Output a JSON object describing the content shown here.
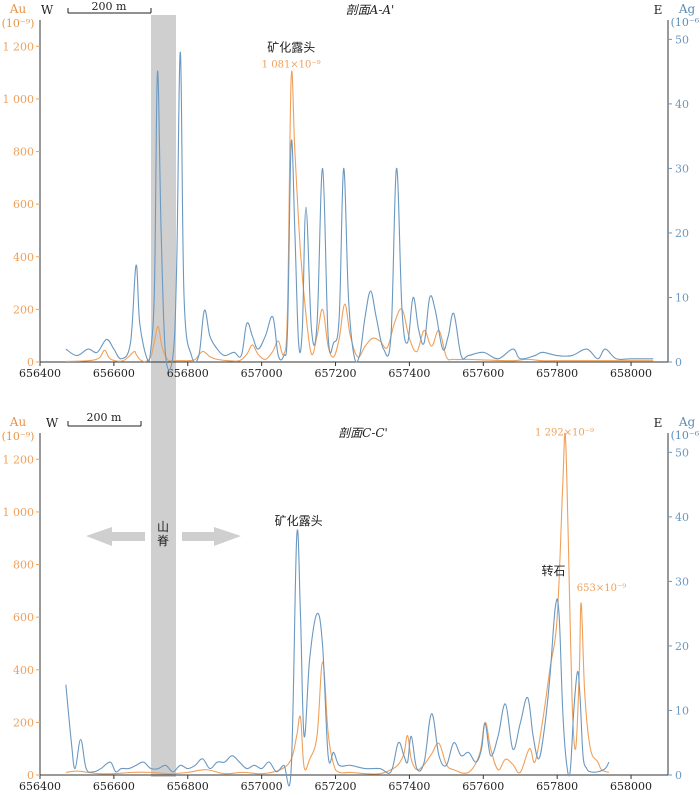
{
  "colors": {
    "au": "#F0A05A",
    "ag": "#6A98C0",
    "ridge": "#CFCFCF",
    "axis": "#333333"
  },
  "left_axis_label": "Au",
  "left_axis_unit": "(10⁻⁹)",
  "right_axis_label": "Ag",
  "right_axis_unit": "(10⁻⁶)",
  "west_label": "W",
  "east_label": "E",
  "scale_bar_label": "200 m",
  "ridge_label_1": "山",
  "ridge_label_2": "脊",
  "chart_data": [
    {
      "type": "line",
      "title": "剖面A-A'",
      "xlim": [
        656400,
        658100
      ],
      "x_ticks": [
        "656400",
        "656600",
        "656800",
        "657000",
        "657200",
        "657400",
        "657600",
        "657800",
        "658000"
      ],
      "y_left_lim": [
        0,
        1300
      ],
      "y_left_ticks": [
        "0",
        "200",
        "400",
        "600",
        "800",
        "1 000",
        "1 200"
      ],
      "y_right_lim": [
        0,
        53
      ],
      "y_right_ticks": [
        "0",
        "10",
        "20",
        "30",
        "40",
        "50"
      ],
      "annotations": [
        {
          "text": "矿化露头",
          "x": 657080,
          "y": 1180,
          "color": "black"
        },
        {
          "text": "1 081×10⁻⁹",
          "x": 657080,
          "y": 1120,
          "color": "au"
        }
      ],
      "series": [
        {
          "name": "Au",
          "axis": "left",
          "color": "au",
          "x": [
            656470,
            656530,
            656560,
            656575,
            656590,
            656620,
            656640,
            656655,
            656660,
            656670,
            656685,
            656700,
            656710,
            656720,
            656730,
            656745,
            656760,
            656780,
            656800,
            656820,
            656840,
            656860,
            656880,
            656910,
            656940,
            656960,
            656975,
            656990,
            657010,
            657030,
            657045,
            657060,
            657070,
            657080,
            657090,
            657105,
            657120,
            657135,
            657150,
            657165,
            657180,
            657195,
            657210,
            657225,
            657240,
            657260,
            657280,
            657300,
            657320,
            657340,
            657360,
            657380,
            657400,
            657420,
            657440,
            657460,
            657480,
            657500,
            657520,
            657560,
            657600,
            657640,
            657680,
            657720,
            657760,
            657800,
            657840,
            657880,
            657920,
            657960,
            658000,
            658060
          ],
          "y": [
            2,
            5,
            15,
            45,
            12,
            3,
            20,
            40,
            30,
            10,
            2,
            20,
            80,
            135,
            60,
            10,
            5,
            5,
            5,
            10,
            40,
            20,
            10,
            5,
            5,
            30,
            65,
            30,
            10,
            40,
            80,
            30,
            200,
            1081,
            800,
            420,
            180,
            30,
            100,
            200,
            60,
            20,
            90,
            220,
            100,
            20,
            60,
            90,
            80,
            55,
            150,
            200,
            90,
            40,
            120,
            60,
            120,
            20,
            10,
            10,
            8,
            6,
            5,
            10,
            5,
            5,
            5,
            5,
            5,
            5,
            5,
            5
          ]
        },
        {
          "name": "Ag",
          "axis": "right",
          "color": "ag",
          "x": [
            656470,
            656500,
            656530,
            656555,
            656580,
            656600,
            656620,
            656645,
            656660,
            656670,
            656690,
            656700,
            656710,
            656718,
            656728,
            656740,
            656760,
            656770,
            656780,
            656790,
            656810,
            656830,
            656845,
            656860,
            656880,
            656900,
            656925,
            656945,
            656960,
            656975,
            656990,
            657010,
            657030,
            657045,
            657060,
            657070,
            657080,
            657090,
            657100,
            657110,
            657120,
            657135,
            657150,
            657165,
            657180,
            657195,
            657210,
            657222,
            657235,
            657250,
            657265,
            657280,
            657295,
            657310,
            657330,
            657350,
            657365,
            657380,
            657395,
            657410,
            657425,
            657440,
            657455,
            657470,
            657490,
            657505,
            657520,
            657540,
            657560,
            657600,
            657640,
            657680,
            657700,
            657740,
            657760,
            657800,
            657840,
            657880,
            657910,
            657930,
            657960,
            658000,
            658060
          ],
          "y": [
            2,
            1,
            2,
            1.5,
            3.5,
            2,
            0.5,
            3,
            15,
            6,
            0.5,
            2,
            12,
            45,
            20,
            1,
            1,
            15,
            48,
            10,
            1,
            1,
            8,
            4,
            2,
            1,
            1.5,
            1,
            6,
            4,
            2,
            4,
            7,
            1,
            1,
            5,
            34,
            20,
            3,
            5,
            24,
            5,
            6,
            30,
            4,
            3,
            7,
            30,
            10,
            1,
            1,
            7,
            11,
            7,
            2,
            4,
            30,
            8,
            3,
            10,
            5,
            3,
            10,
            8,
            2,
            4,
            7.5,
            1,
            1,
            1.5,
            0.5,
            2,
            0.5,
            1,
            1.5,
            1,
            1,
            2,
            0.5,
            2,
            0.5,
            0.5,
            0.5
          ]
        }
      ]
    },
    {
      "type": "line",
      "title": "剖面C-C'",
      "xlim": [
        656400,
        658100
      ],
      "x_ticks": [
        "656400",
        "656600",
        "656800",
        "657000",
        "657200",
        "657400",
        "657600",
        "657800",
        "658000"
      ],
      "y_left_lim": [
        0,
        1300
      ],
      "y_left_ticks": [
        "0",
        "200",
        "400",
        "600",
        "800",
        "1 000",
        "1 200"
      ],
      "y_right_lim": [
        0,
        53
      ],
      "y_right_ticks": [
        "0",
        "10",
        "20",
        "30",
        "40",
        "50"
      ],
      "annotations": [
        {
          "text": "矿化露头",
          "x": 657100,
          "y": 950,
          "color": "black"
        },
        {
          "text": "1 292×10⁻⁹",
          "x": 657820,
          "y": 1290,
          "color": "au"
        },
        {
          "text": "转石",
          "x": 657790,
          "y": 760,
          "color": "black"
        },
        {
          "text": "653×10⁻⁹",
          "x": 657920,
          "y": 700,
          "color": "au"
        }
      ],
      "series": [
        {
          "name": "Au",
          "axis": "left",
          "color": "au",
          "x": [
            656470,
            656500,
            656530,
            656560,
            656600,
            656650,
            656700,
            656750,
            656800,
            656850,
            656900,
            656950,
            657000,
            657050,
            657080,
            657095,
            657105,
            657115,
            657130,
            657150,
            657165,
            657180,
            657195,
            657210,
            657240,
            657280,
            657320,
            657350,
            657370,
            657385,
            657395,
            657405,
            657420,
            657440,
            657460,
            657480,
            657500,
            657520,
            657560,
            657590,
            657605,
            657620,
            657640,
            657660,
            657680,
            657700,
            657725,
            657740,
            657760,
            657780,
            657800,
            657815,
            657822,
            657830,
            657840,
            657850,
            657860,
            657865,
            657875,
            657890,
            657910,
            657920,
            657940
          ],
          "y": [
            10,
            15,
            10,
            5,
            5,
            10,
            10,
            5,
            10,
            20,
            5,
            10,
            5,
            20,
            60,
            150,
            220,
            30,
            60,
            150,
            430,
            160,
            40,
            10,
            10,
            5,
            5,
            20,
            40,
            80,
            150,
            60,
            20,
            40,
            80,
            120,
            40,
            20,
            10,
            80,
            200,
            100,
            20,
            60,
            40,
            10,
            100,
            50,
            200,
            400,
            600,
            1100,
            1292,
            900,
            300,
            100,
            400,
            653,
            300,
            100,
            50,
            20,
            10
          ]
        },
        {
          "name": "Ag",
          "axis": "right",
          "color": "ag",
          "x": [
            656470,
            656485,
            656495,
            656510,
            656525,
            656545,
            656565,
            656590,
            656605,
            656620,
            656640,
            656660,
            656680,
            656700,
            656720,
            656740,
            656760,
            656780,
            656800,
            656820,
            656840,
            656860,
            656880,
            656900,
            656920,
            656940,
            656960,
            656980,
            657000,
            657020,
            657040,
            657060,
            657080,
            657095,
            657105,
            657115,
            657130,
            657150,
            657165,
            657180,
            657195,
            657210,
            657240,
            657280,
            657320,
            657350,
            657370,
            657385,
            657395,
            657405,
            657420,
            657440,
            657460,
            657480,
            657500,
            657520,
            657540,
            657560,
            657580,
            657595,
            657605,
            657620,
            657640,
            657660,
            657680,
            657700,
            657720,
            657735,
            657750,
            657765,
            657780,
            657795,
            657805,
            657815,
            657825,
            657835,
            657845,
            657855,
            657862,
            657870,
            657880,
            657890,
            657910,
            657930,
            657940
          ],
          "y": [
            14,
            5,
            1,
            5.5,
            1,
            0.5,
            1,
            2,
            0.5,
            1,
            1,
            1.5,
            2,
            1,
            1,
            1.5,
            0.5,
            1.5,
            1,
            1.5,
            2.5,
            1,
            2,
            2,
            3,
            2,
            1,
            1.5,
            1,
            2,
            0.5,
            1.5,
            1,
            37,
            25,
            6,
            18,
            25,
            20,
            3,
            3.5,
            1.5,
            1.5,
            1,
            1,
            0.5,
            5,
            3,
            2,
            6,
            1,
            2,
            9.5,
            3,
            1.5,
            5,
            3,
            3.5,
            2,
            4,
            8,
            3,
            6,
            11,
            4,
            8,
            12,
            6,
            2.5,
            7,
            15,
            26,
            25,
            10,
            2,
            0.5,
            10,
            16,
            12,
            3,
            1,
            0.5,
            0.5,
            1,
            2
          ]
        }
      ]
    }
  ]
}
